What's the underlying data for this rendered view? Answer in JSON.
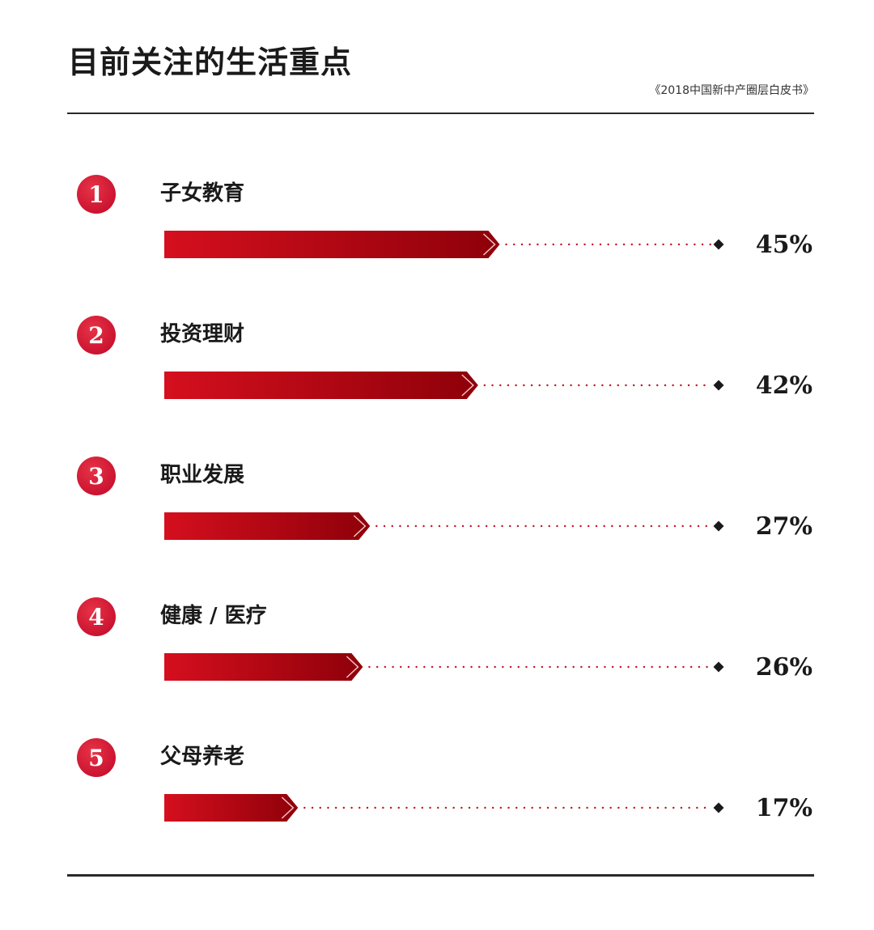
{
  "title": "目前关注的生活重点",
  "source": "《2018中国新中产圈层白皮书》",
  "colors": {
    "bar_light": "#d50f1e",
    "bar_dark": "#8e0009",
    "badge": "#c8102e",
    "dots": "#c0182a",
    "diamond": "#1a1a1a",
    "rule": "#2a2a2a"
  },
  "chart_data": {
    "type": "bar",
    "orientation": "horizontal",
    "categories": [
      "子女教育",
      "投资理财",
      "职业发展",
      "健康 / 医疗",
      "父母养老"
    ],
    "ranks": [
      "1",
      "2",
      "3",
      "4",
      "5"
    ],
    "values": [
      45,
      42,
      27,
      26,
      17
    ],
    "value_labels": [
      "45%",
      "42%",
      "27%",
      "26%",
      "17%"
    ],
    "unit": "%",
    "grid": false
  }
}
